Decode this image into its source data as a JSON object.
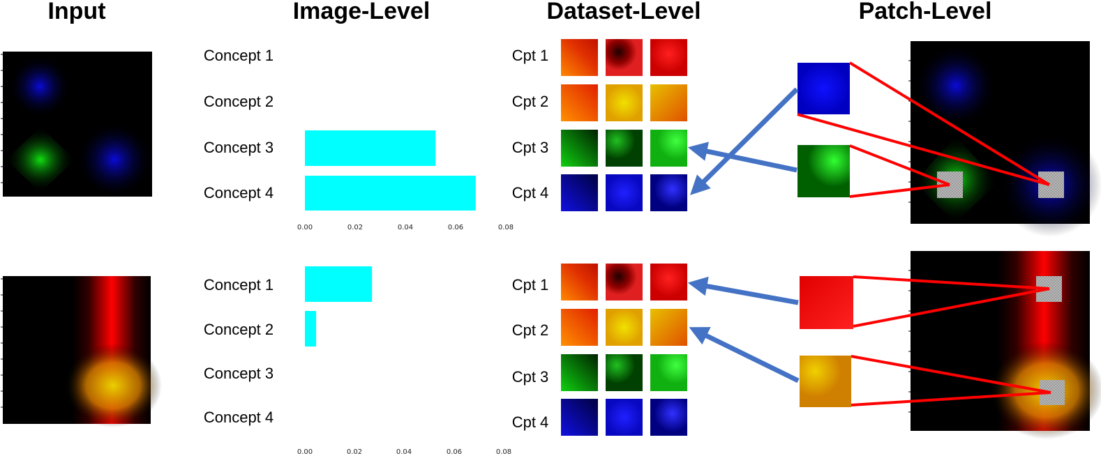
{
  "headers": {
    "input": "Input",
    "image_level": "Image-Level",
    "dataset_level": "Dataset-Level",
    "patch_level": "Patch-Level"
  },
  "concept_labels": [
    "Concept 1",
    "Concept 2",
    "Concept 3",
    "Concept 4"
  ],
  "cpt_labels": [
    "Cpt 1",
    "Cpt 2",
    "Cpt 3",
    "Cpt 4"
  ],
  "axis_ticks": [
    "0.00",
    "0.02",
    "0.04",
    "0.06",
    "0.08"
  ],
  "colors": {
    "bar": "#00ffff",
    "arrow": "#4472c4",
    "connector": "#ff0000",
    "patch": "#a0a0a0"
  },
  "chart_data": [
    {
      "type": "bar",
      "orientation": "horizontal",
      "categories": [
        "Concept 1",
        "Concept 2",
        "Concept 3",
        "Concept 4"
      ],
      "values": [
        0,
        0,
        0.052,
        0.068
      ],
      "xlim": [
        0,
        0.08
      ],
      "xticks": [
        0.0,
        0.02,
        0.04,
        0.06,
        0.08
      ]
    },
    {
      "type": "bar",
      "orientation": "horizontal",
      "categories": [
        "Concept 1",
        "Concept 2",
        "Concept 3",
        "Concept 4"
      ],
      "values": [
        0.027,
        0.0045,
        0,
        0
      ],
      "xlim": [
        0,
        0.08
      ],
      "xticks": [
        0.0,
        0.02,
        0.04,
        0.06,
        0.08
      ]
    }
  ]
}
